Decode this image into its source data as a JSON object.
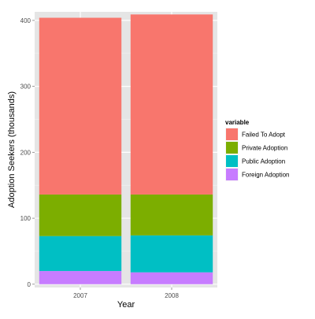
{
  "chart_data": {
    "type": "bar",
    "stacked": true,
    "categories": [
      "2007",
      "2008"
    ],
    "series": [
      {
        "name": "Foreign Adoption",
        "color": "#C77CFF",
        "values": [
          20,
          18
        ]
      },
      {
        "name": "Public Adoption",
        "color": "#00BFC4",
        "values": [
          53,
          56
        ]
      },
      {
        "name": "Private Adoption",
        "color": "#7CAE00",
        "values": [
          63,
          62
        ]
      },
      {
        "name": "Failed To Adopt",
        "color": "#F8766D",
        "values": [
          268,
          273
        ]
      }
    ],
    "title": "",
    "xlabel": "Year",
    "ylabel": "Adoption Seekers (thousands)",
    "ylim": [
      -5,
      413
    ],
    "yticks": [
      0,
      100,
      200,
      300,
      400
    ],
    "grid": true,
    "legend": {
      "title": "variable",
      "placement": "right",
      "items": [
        "Failed To Adopt",
        "Private Adoption",
        "Public Adoption",
        "Foreign Adoption"
      ]
    },
    "panel_background": "#E5E5E5",
    "grid_color": "#FFFFFF"
  }
}
